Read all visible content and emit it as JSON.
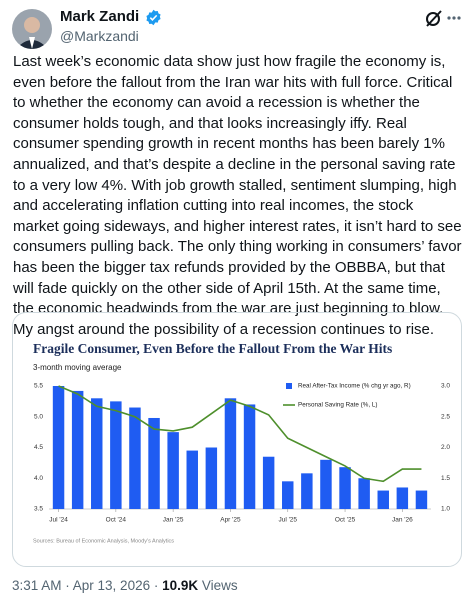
{
  "author": {
    "name": "Mark Zandi",
    "handle": "@Markzandi"
  },
  "tweet": {
    "text": "Last week’s economic data show just how fragile the economy is, even before the fallout from the Iran war hits with full force. Critical to whether the economy can avoid a recession is whether the consumer holds tough, and that looks increasingly iffy. Real consumer spending growth in recent months has been barely 1% annualized, and that’s despite a decline in the personal saving rate to a very low 4%. With job growth stalled, sentiment slumping, high and accelerating inflation cutting into real incomes, the stock market going sideways, and higher interest rates, it isn’t hard to see consumers pulling back. The only thing working in consumers’ favor has been the bigger tax refunds provided by the OBBBA, but that will fade quickly on the other side of April 15th. At the same time, the economic headwinds from the war are just beginning to blow. My angst around the possibility of a recession continues to rise."
  },
  "footer": {
    "timestamp": "3:31 AM · Apr 13, 2026 ·",
    "views": "10.9K",
    "views_label": "Views"
  },
  "chart_data": {
    "type": "bar-line",
    "title": "Fragile Consumer, Even Before the Fallout From the War Hits",
    "subtitle": "3-month moving average",
    "source": "Sources: Bureau of Economic Analysis, Moody's Analytics",
    "categories": [
      "Jul '24",
      null,
      null,
      "Oct '24",
      null,
      null,
      "Jan '25",
      null,
      null,
      "Apr '25",
      null,
      null,
      "Jul '25",
      null,
      null,
      "Oct '25",
      null,
      null,
      "Jan '26",
      null
    ],
    "series": [
      {
        "name": "Real After-Tax Income (% chg yr ago, R)",
        "type": "bar",
        "axis": "y2",
        "color": "#1f5cf2",
        "values": [
          3.0,
          2.92,
          2.8,
          2.75,
          2.65,
          2.48,
          2.25,
          1.95,
          2.0,
          2.8,
          2.7,
          1.85,
          1.45,
          1.58,
          1.8,
          1.68,
          1.5,
          1.3,
          1.35,
          1.3
        ]
      },
      {
        "name": "Personal Saving Rate (%, L)",
        "type": "line",
        "color": "#4e8f2c",
        "values": [
          5.5,
          5.37,
          5.17,
          5.1,
          5.0,
          4.8,
          4.77,
          4.83,
          5.05,
          5.27,
          5.17,
          5.03,
          4.65,
          4.5,
          4.35,
          4.2,
          4.0,
          3.95,
          4.15,
          4.15
        ]
      }
    ],
    "ylim": [
      3.5,
      5.5
    ],
    "yticks": [
      3.5,
      {
        "value": 4,
        "label": "4.0"
      },
      4.5,
      {
        "value": 5,
        "label": "5.0"
      },
      5.5
    ],
    "y2lim": [
      1,
      3
    ],
    "y2ticks": [
      {
        "value": 1,
        "label": "1.0"
      },
      1.5,
      {
        "value": 2,
        "label": "2.0"
      },
      2.5,
      {
        "value": 3,
        "label": "3.0"
      }
    ],
    "legend": "top-right",
    "grid": false
  }
}
